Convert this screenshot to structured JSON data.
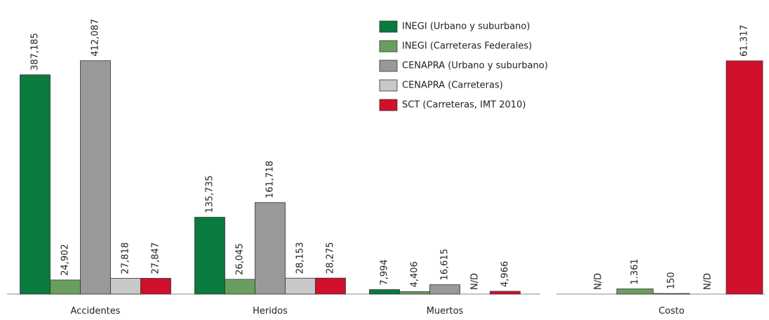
{
  "chart_data": [
    {
      "type": "bar",
      "categories": [
        "Accidentes",
        "Heridos",
        "Muertos"
      ],
      "ylim": [
        0,
        450000
      ],
      "legend": "top",
      "series": [
        {
          "name": "INEGI (Urbano y suburbano)",
          "color": "#0b7a3e",
          "values": [
            387185,
            135735,
            7994
          ],
          "value_labels": [
            "387,185",
            "135,735",
            "7,994"
          ]
        },
        {
          "name": "INEGI (Carreteras Federales)",
          "color": "#6a9e5e",
          "values": [
            24902,
            26045,
            4406
          ],
          "value_labels": [
            "24,902",
            "26,045",
            "4,406"
          ]
        },
        {
          "name": "CENAPRA (Urbano y suburbano)",
          "color": "#999999",
          "values": [
            412087,
            161718,
            16615
          ],
          "value_labels": [
            "412,087",
            "161,718",
            "16,615"
          ]
        },
        {
          "name": "CENAPRA (Carreteras)",
          "color": "#c8c8c8",
          "values": [
            27818,
            28153,
            null
          ],
          "value_labels": [
            "27,818",
            "28,153",
            "N/D"
          ]
        },
        {
          "name": "SCT (Carreteras, IMT 2010)",
          "color": "#d0102a",
          "values": [
            27847,
            28275,
            4966
          ],
          "value_labels": [
            "27,847",
            "28,275",
            "4,966"
          ]
        }
      ]
    },
    {
      "type": "bar",
      "categories": [
        "Costo"
      ],
      "ylim": [
        0,
        67000
      ],
      "series": [
        {
          "color": "#0b7a3e",
          "values": [
            null
          ],
          "value_labels": [
            "N/D"
          ]
        },
        {
          "color": "#6a9e5e",
          "values": [
            1361
          ],
          "value_labels": [
            "1.361"
          ]
        },
        {
          "color": "#999999",
          "values": [
            150
          ],
          "value_labels": [
            "150"
          ]
        },
        {
          "color": "#c8c8c8",
          "values": [
            null
          ],
          "value_labels": [
            "N/D"
          ]
        },
        {
          "color": "#d0102a",
          "values": [
            61317
          ],
          "value_labels": [
            "61.317"
          ]
        }
      ]
    }
  ]
}
